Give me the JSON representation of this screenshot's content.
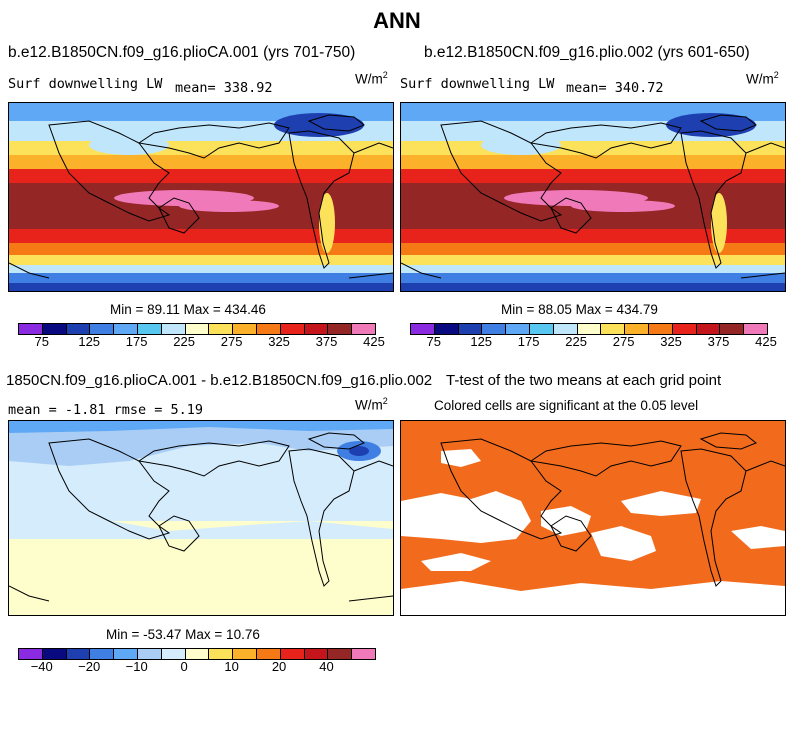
{
  "page_title": "ANN",
  "panels": {
    "top_left": {
      "title": "b.e12.B1850CN.f09_g16.plioCA.001 (yrs 701-750)",
      "left_label": "Surf downwelling LW",
      "mean_label": "mean= 338.92",
      "units": "W/m",
      "units_exp": "2",
      "minmax": "Min =  89.11 Max = 434.46"
    },
    "top_right": {
      "title": "b.e12.B1850CN.f09_g16.plio.002 (yrs 601-650)",
      "left_label": "Surf downwelling LW",
      "mean_label": "mean= 340.72",
      "units": "W/m",
      "units_exp": "2",
      "minmax": "Min =  88.05 Max = 434.79"
    },
    "bottom_left": {
      "title": "1850CN.f09_g16.plioCA.001 - b.e12.B1850CN.f09_g16.plio.002",
      "stats": "mean =  -1.81    rmse =   5.19",
      "units": "W/m",
      "units_exp": "2",
      "minmax": "Min = -53.47 Max =  10.76"
    },
    "bottom_right": {
      "title": "T-test of the two means at each grid point",
      "subtitle": "Colored cells are significant at the 0.05 level",
      "sig_color": "#f26b1d"
    }
  },
  "colorbars": {
    "abs": {
      "colors": [
        "#8a2be2",
        "#0a0a80",
        "#1e3fb0",
        "#3f7fe3",
        "#5fa8f5",
        "#58c8f0",
        "#bfe6fb",
        "#fefecc",
        "#fbe25a",
        "#fbb12a",
        "#f57a16",
        "#e8231b",
        "#c4141c",
        "#952626",
        "#f07ab9"
      ],
      "labels": [
        "75",
        "125",
        "175",
        "225",
        "275",
        "325",
        "375",
        "425"
      ]
    },
    "diff": {
      "colors": [
        "#8a2be2",
        "#0a0a80",
        "#1e3fb0",
        "#3f7fe3",
        "#5fa8f5",
        "#a9cdf5",
        "#d4ecfb",
        "#fefecc",
        "#fbe25a",
        "#fbb12a",
        "#f57a16",
        "#e8231b",
        "#c4141c",
        "#952626",
        "#f07ab9"
      ],
      "labels": [
        "−40",
        "−20",
        "−10",
        "0",
        "10",
        "20",
        "40"
      ]
    }
  }
}
